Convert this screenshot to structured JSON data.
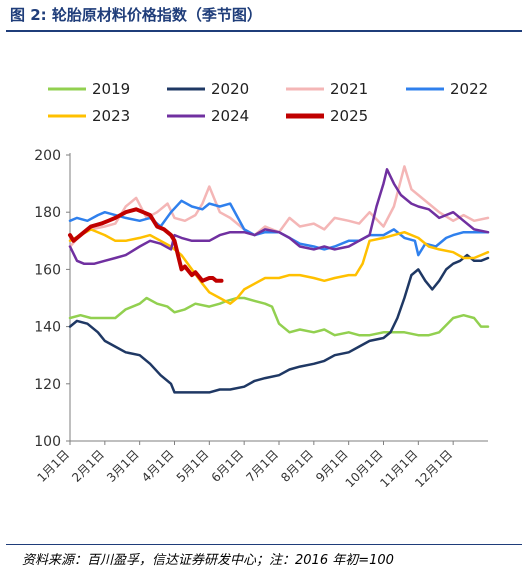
{
  "header": {
    "title": "图 2:  轮胎原材料价格指数（季节图）"
  },
  "footer": {
    "source": "资料来源：百川盈孚，信达证券研发中心；注：2016 年初=100"
  },
  "chart_data": {
    "type": "line",
    "title": "",
    "xlabel": "",
    "ylabel": "",
    "ylim": [
      100,
      200
    ],
    "yticks": [
      100,
      120,
      140,
      160,
      180,
      200
    ],
    "x_domain": [
      1,
      13
    ],
    "x_tick_labels": [
      "1月1日",
      "2月1日",
      "3月1日",
      "4月1日",
      "5月1日",
      "6月1日",
      "7月1日",
      "8月1日",
      "9月1日",
      "10月1日",
      "11月1日",
      "12月1日"
    ],
    "x_note": "x = month + fraction of month (1.0 = 1月1日)",
    "grid": false,
    "legend": "top",
    "series": [
      {
        "name": "2019",
        "color": "#92d050",
        "width": 2.5,
        "x": [
          1.0,
          1.3,
          1.6,
          2.0,
          2.3,
          2.6,
          3.0,
          3.2,
          3.5,
          3.8,
          4.0,
          4.3,
          4.6,
          5.0,
          5.3,
          5.5,
          5.8,
          6.0,
          6.3,
          6.6,
          6.8,
          7.0,
          7.3,
          7.6,
          8.0,
          8.3,
          8.6,
          9.0,
          9.3,
          9.6,
          10.0,
          10.3,
          10.6,
          11.0,
          11.3,
          11.6,
          12.0,
          12.3,
          12.6,
          12.8,
          13.0
        ],
        "y": [
          143,
          144,
          143,
          143,
          143,
          146,
          148,
          150,
          148,
          147,
          145,
          146,
          148,
          147,
          148,
          149,
          150,
          150,
          149,
          148,
          147,
          141,
          138,
          139,
          138,
          139,
          137,
          138,
          137,
          137,
          138,
          138,
          138,
          137,
          137,
          138,
          143,
          144,
          143,
          140,
          140
        ]
      },
      {
        "name": "2020",
        "color": "#1f3864",
        "width": 2.5,
        "x": [
          1.0,
          1.2,
          1.5,
          1.8,
          2.0,
          2.3,
          2.6,
          3.0,
          3.3,
          3.6,
          3.9,
          4.0,
          4.2,
          4.5,
          4.8,
          5.0,
          5.3,
          5.6,
          6.0,
          6.3,
          6.6,
          7.0,
          7.3,
          7.6,
          8.0,
          8.3,
          8.6,
          9.0,
          9.3,
          9.6,
          10.0,
          10.2,
          10.4,
          10.6,
          10.8,
          11.0,
          11.2,
          11.4,
          11.6,
          11.8,
          12.0,
          12.2,
          12.4,
          12.6,
          12.8,
          13.0
        ],
        "y": [
          140,
          142,
          141,
          138,
          135,
          133,
          131,
          130,
          127,
          123,
          120,
          117,
          117,
          117,
          117,
          117,
          118,
          118,
          119,
          121,
          122,
          123,
          125,
          126,
          127,
          128,
          130,
          131,
          133,
          135,
          136,
          138,
          143,
          150,
          158,
          160,
          156,
          153,
          156,
          160,
          162,
          163,
          165,
          163,
          163,
          164
        ]
      },
      {
        "name": "2021",
        "color": "#f4b6b6",
        "width": 2.5,
        "x": [
          1.0,
          1.3,
          1.6,
          2.0,
          2.3,
          2.6,
          2.9,
          3.2,
          3.5,
          3.8,
          4.0,
          4.3,
          4.6,
          4.8,
          5.0,
          5.3,
          5.6,
          6.0,
          6.3,
          6.6,
          7.0,
          7.3,
          7.6,
          8.0,
          8.3,
          8.6,
          9.0,
          9.3,
          9.6,
          10.0,
          10.3,
          10.6,
          10.8,
          11.0,
          11.3,
          11.6,
          12.0,
          12.3,
          12.6,
          13.0
        ],
        "y": [
          168,
          172,
          174,
          175,
          176,
          182,
          185,
          178,
          180,
          183,
          178,
          177,
          179,
          183,
          189,
          180,
          178,
          174,
          172,
          175,
          173,
          178,
          175,
          176,
          174,
          178,
          177,
          176,
          180,
          175,
          182,
          196,
          188,
          186,
          183,
          180,
          177,
          179,
          177,
          178
        ]
      },
      {
        "name": "2022",
        "color": "#2f80ed",
        "width": 2.5,
        "x": [
          1.0,
          1.2,
          1.5,
          1.8,
          2.0,
          2.3,
          2.6,
          3.0,
          3.3,
          3.6,
          3.9,
          4.2,
          4.5,
          4.8,
          5.0,
          5.3,
          5.6,
          6.0,
          6.3,
          6.6,
          7.0,
          7.3,
          7.6,
          8.0,
          8.3,
          8.6,
          9.0,
          9.3,
          9.6,
          10.0,
          10.3,
          10.6,
          10.9,
          11.0,
          11.2,
          11.5,
          11.8,
          12.0,
          12.3,
          12.6,
          13.0
        ],
        "y": [
          177,
          178,
          177,
          179,
          180,
          179,
          178,
          177,
          178,
          175,
          180,
          184,
          182,
          181,
          183,
          182,
          183,
          174,
          172,
          173,
          173,
          171,
          169,
          168,
          167,
          168,
          170,
          170,
          172,
          172,
          174,
          171,
          170,
          165,
          169,
          168,
          171,
          172,
          173,
          173,
          173
        ]
      },
      {
        "name": "2023",
        "color": "#ffc000",
        "width": 2.5,
        "x": [
          1.0,
          1.3,
          1.6,
          2.0,
          2.3,
          2.6,
          3.0,
          3.3,
          3.6,
          3.9,
          4.2,
          4.5,
          4.8,
          5.0,
          5.3,
          5.6,
          5.8,
          6.0,
          6.3,
          6.6,
          7.0,
          7.3,
          7.6,
          8.0,
          8.3,
          8.6,
          9.0,
          9.2,
          9.4,
          9.6,
          10.0,
          10.3,
          10.6,
          11.0,
          11.3,
          11.6,
          12.0,
          12.3,
          12.6,
          12.8,
          13.0
        ],
        "y": [
          170,
          172,
          174,
          172,
          170,
          170,
          171,
          172,
          170,
          168,
          165,
          160,
          155,
          152,
          150,
          148,
          150,
          153,
          155,
          157,
          157,
          158,
          158,
          157,
          156,
          157,
          158,
          158,
          162,
          170,
          171,
          172,
          173,
          171,
          168,
          167,
          166,
          164,
          164,
          165,
          166
        ]
      },
      {
        "name": "2024",
        "color": "#7030a0",
        "width": 2.5,
        "x": [
          1.0,
          1.2,
          1.4,
          1.7,
          2.0,
          2.3,
          2.6,
          3.0,
          3.3,
          3.6,
          3.9,
          4.0,
          4.2,
          4.5,
          4.8,
          5.0,
          5.3,
          5.6,
          6.0,
          6.3,
          6.6,
          7.0,
          7.3,
          7.6,
          8.0,
          8.3,
          8.6,
          9.0,
          9.3,
          9.6,
          9.8,
          10.0,
          10.1,
          10.3,
          10.5,
          10.8,
          11.0,
          11.3,
          11.6,
          12.0,
          12.3,
          12.6,
          13.0
        ],
        "y": [
          168,
          163,
          162,
          162,
          163,
          164,
          165,
          168,
          170,
          169,
          167,
          172,
          171,
          170,
          170,
          170,
          172,
          173,
          173,
          172,
          174,
          173,
          171,
          168,
          167,
          168,
          167,
          168,
          170,
          172,
          182,
          190,
          195,
          190,
          186,
          183,
          182,
          181,
          178,
          180,
          177,
          174,
          173
        ]
      },
      {
        "name": "2025",
        "color": "#c00000",
        "width": 4,
        "x": [
          1.0,
          1.1,
          1.3,
          1.6,
          1.9,
          2.1,
          2.3,
          2.6,
          2.9,
          3.1,
          3.3,
          3.5,
          3.7,
          3.9,
          4.0,
          4.1,
          4.2,
          4.3,
          4.5,
          4.6,
          4.8,
          5.0,
          5.1,
          5.2,
          5.35
        ],
        "y": [
          172,
          170,
          172,
          175,
          176,
          177,
          178,
          180,
          181,
          180,
          179,
          175,
          174,
          172,
          170,
          165,
          160,
          161,
          158,
          159,
          156,
          157,
          157,
          156,
          156
        ]
      }
    ]
  }
}
